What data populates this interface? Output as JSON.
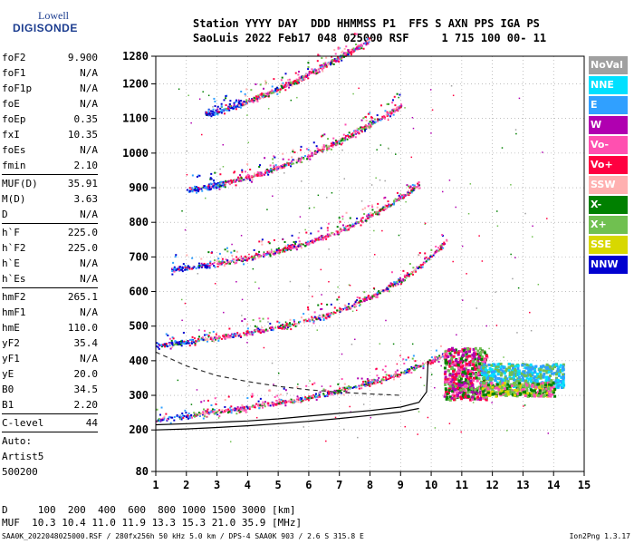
{
  "logo": {
    "line1": "Lowell",
    "line2": "DIGISONDE"
  },
  "header": {
    "line1": "Station YYYY DAY  DDD HHMMSS P1  FFS S AXN PPS IGA PS",
    "line2": "SaoLuis 2022 Feb17 048 025000 RSF     1 715 100 00- 11"
  },
  "params": [
    {
      "k": "foF2",
      "v": "9.900"
    },
    {
      "k": "foF1",
      "v": "N/A"
    },
    {
      "k": "foF1p",
      "v": "N/A"
    },
    {
      "k": "foE",
      "v": "N/A"
    },
    {
      "k": "foEp",
      "v": "0.35"
    },
    {
      "k": "fxI",
      "v": "10.35"
    },
    {
      "k": "foEs",
      "v": "N/A"
    },
    {
      "k": "fmin",
      "v": "2.10"
    },
    {
      "sep": true
    },
    {
      "k": "MUF(D)",
      "v": "35.91"
    },
    {
      "k": "M(D)",
      "v": "3.63"
    },
    {
      "k": "D",
      "v": "N/A"
    },
    {
      "sep": true
    },
    {
      "k": "h`F",
      "v": "225.0"
    },
    {
      "k": "h`F2",
      "v": "225.0"
    },
    {
      "k": "h`E",
      "v": "N/A"
    },
    {
      "k": "h`Es",
      "v": "N/A"
    },
    {
      "sep": true
    },
    {
      "k": "hmF2",
      "v": "265.1"
    },
    {
      "k": "hmF1",
      "v": "N/A"
    },
    {
      "k": "hmE",
      "v": "110.0"
    },
    {
      "k": "yF2",
      "v": "35.4"
    },
    {
      "k": "yF1",
      "v": "N/A"
    },
    {
      "k": "yE",
      "v": "20.0"
    },
    {
      "k": "B0",
      "v": "34.5"
    },
    {
      "k": "B1",
      "v": "2.20"
    },
    {
      "sep": true
    },
    {
      "k": "C-level",
      "v": "44"
    },
    {
      "sep": true
    },
    {
      "k": "Auto:",
      "v": ""
    },
    {
      "k": "Artist5",
      "v": ""
    },
    {
      "k": "500200",
      "v": ""
    }
  ],
  "legend": [
    {
      "label": "NoVal",
      "color": "#a0a0a0"
    },
    {
      "label": "NNE",
      "color": "#00e0ff"
    },
    {
      "label": "E",
      "color": "#30a0ff"
    },
    {
      "label": "W",
      "color": "#b000b0"
    },
    {
      "label": "Vo-",
      "color": "#ff50b0"
    },
    {
      "label": "Vo+",
      "color": "#ff0040"
    },
    {
      "label": "SSW",
      "color": "#ffb0b0"
    },
    {
      "label": "X-",
      "color": "#008000"
    },
    {
      "label": "X+",
      "color": "#70c050"
    },
    {
      "label": "SSE",
      "color": "#d8d800"
    },
    {
      "label": "NNW",
      "color": "#0000d0"
    }
  ],
  "bottom": {
    "line1": "D     100  200  400  600  800 1000 1500 3000 [km]",
    "line2": "MUF  10.3 10.4 11.0 11.9 13.3 15.3 21.0 35.9 [MHz]"
  },
  "footer": {
    "text": "SAA0K_2022048025000.RSF / 280fx256h 50 kHz 5.0 km / DPS-4 SAA0K 903 / 2.6 S 315.8 E",
    "version": "Ion2Png 1.3.17"
  },
  "chart_data": {
    "type": "scatter",
    "x": {
      "min": 1,
      "max": 15,
      "ticks": [
        1,
        2,
        3,
        4,
        5,
        6,
        7,
        8,
        9,
        10,
        11,
        12,
        13,
        14,
        15
      ]
    },
    "y": {
      "min": 80,
      "max": 1280,
      "ticks": [
        80,
        200,
        300,
        400,
        500,
        600,
        700,
        800,
        900,
        1000,
        1100,
        1200,
        1280
      ]
    },
    "grid": true,
    "traces": [
      {
        "kind": "echo",
        "x0": 1.0,
        "x1": 10.5,
        "h0": 230,
        "hk": 80,
        "p": 4
      },
      {
        "kind": "echo",
        "x0": 1.0,
        "x1": 10.5,
        "h0": 445,
        "hk": 190,
        "p": 4
      },
      {
        "kind": "echo",
        "x0": 1.5,
        "x1": 9.6,
        "h0": 665,
        "hk": 150,
        "p": 3
      },
      {
        "kind": "echo",
        "x0": 2.0,
        "x1": 9.0,
        "h0": 895,
        "hk": 160,
        "p": 2
      },
      {
        "kind": "echo",
        "x0": 2.6,
        "x1": 8.0,
        "h0": 1115,
        "hk": 150,
        "p": 1.5
      }
    ],
    "clouds": [
      {
        "x0": 10.4,
        "x1": 11.8,
        "h0": 290,
        "h1": 440,
        "n": 520,
        "colors": [
          "#ff50b0",
          "#ff0040",
          "#b000b0",
          "#70c050",
          "#008000"
        ]
      },
      {
        "x0": 11.6,
        "x1": 14.3,
        "h0": 325,
        "h1": 395,
        "n": 480,
        "colors": [
          "#00e0ff",
          "#30a0ff",
          "#70c050"
        ]
      },
      {
        "x0": 11.6,
        "x1": 14.0,
        "h0": 300,
        "h1": 340,
        "n": 300,
        "colors": [
          "#008000",
          "#70c050",
          "#d8d800",
          "#ff50b0"
        ]
      }
    ],
    "profile_solid_upper": [
      [
        1,
        215
      ],
      [
        2,
        218
      ],
      [
        3,
        222
      ],
      [
        4,
        226
      ],
      [
        5,
        232
      ],
      [
        6,
        240
      ],
      [
        7,
        248
      ],
      [
        8,
        256
      ],
      [
        9,
        266
      ],
      [
        9.6,
        280
      ],
      [
        9.85,
        310
      ],
      [
        9.9,
        400
      ]
    ],
    "profile_solid_lower": [
      [
        1,
        200
      ],
      [
        2,
        203
      ],
      [
        3,
        207
      ],
      [
        4,
        212
      ],
      [
        5,
        218
      ],
      [
        6,
        225
      ],
      [
        7,
        233
      ],
      [
        8,
        242
      ],
      [
        9,
        252
      ],
      [
        9.6,
        262
      ]
    ],
    "profile_dashed": [
      [
        1,
        425
      ],
      [
        2,
        385
      ],
      [
        3,
        357
      ],
      [
        4,
        340
      ],
      [
        5,
        326
      ],
      [
        6,
        316
      ],
      [
        7,
        309
      ],
      [
        8,
        304
      ],
      [
        9,
        300
      ]
    ]
  }
}
